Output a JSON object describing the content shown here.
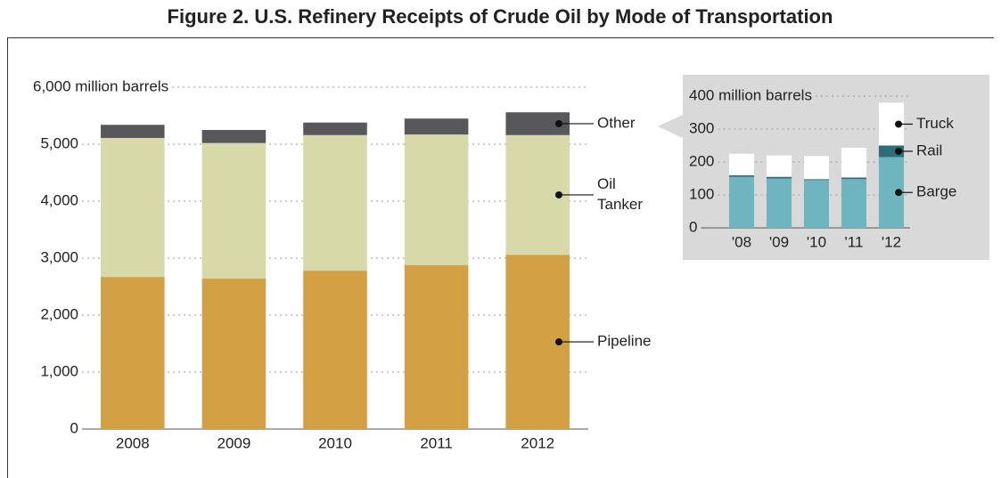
{
  "chart_data": [
    {
      "type": "stacked_bar",
      "title": "Figure 2. U.S. Refinery Receipts of Crude Oil by Mode of Transportation",
      "categories": [
        "2008",
        "2009",
        "2010",
        "2011",
        "2012"
      ],
      "series": [
        {
          "name": "Pipeline",
          "color": "#d4a044",
          "values": [
            2670,
            2640,
            2780,
            2880,
            3060
          ]
        },
        {
          "name": "Oil Tanker",
          "color": "#d8d9a9",
          "values": [
            2440,
            2380,
            2380,
            2290,
            2100
          ]
        },
        {
          "name": "Other",
          "color": "#58585a",
          "values": [
            230,
            230,
            220,
            280,
            400
          ]
        }
      ],
      "ylim": [
        0,
        6000
      ],
      "yticks": [
        0,
        {
          "value": 1000,
          "label": "1,000"
        },
        {
          "value": 2000,
          "label": "2,000"
        },
        {
          "value": 3000,
          "label": "3,000"
        },
        {
          "value": 4000,
          "label": "4,000"
        },
        {
          "value": 5000,
          "label": "5,000"
        },
        {
          "value": 6000,
          "label": "6,000 million barrels"
        }
      ],
      "grid": true
    },
    {
      "type": "stacked_bar",
      "categories": [
        "'08",
        "'09",
        "'10",
        "'11",
        "'12"
      ],
      "series": [
        {
          "name": "Barge",
          "color": "#6fb5c0",
          "values": [
            155,
            150,
            145,
            148,
            215
          ]
        },
        {
          "name": "Rail",
          "color": "#2f6e78",
          "values": [
            5,
            5,
            3,
            5,
            35
          ]
        },
        {
          "name": "Truck",
          "color": "#ffffff",
          "values": [
            65,
            65,
            70,
            90,
            130
          ]
        }
      ],
      "ylim": [
        0,
        400
      ],
      "yticks": [
        0,
        100,
        200,
        300,
        {
          "value": 400,
          "label": "400 million barrels"
        }
      ],
      "grid": true
    }
  ]
}
